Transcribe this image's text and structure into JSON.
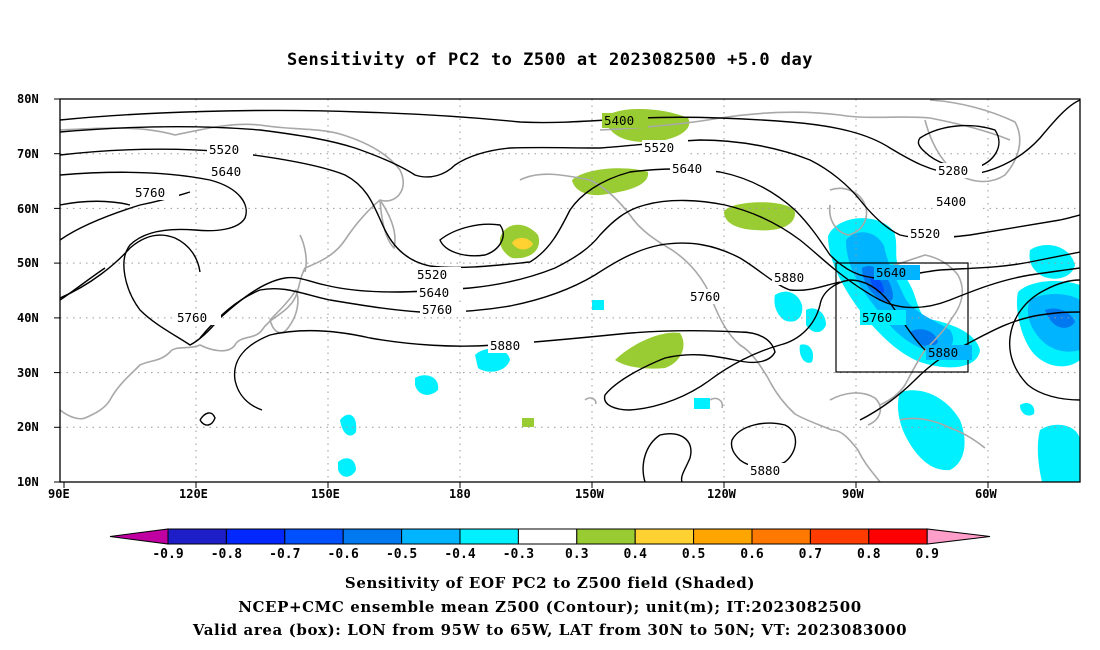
{
  "title": "Sensitivity of PC2 to Z500 at 2023082500 +5.0 day",
  "map": {
    "lon_ticks": [
      "90E",
      "120E",
      "150E",
      "180",
      "150W",
      "120W",
      "90W",
      "60W"
    ],
    "lat_ticks": [
      "80N",
      "70N",
      "60N",
      "50N",
      "40N",
      "30N",
      "20N",
      "10N"
    ],
    "lon_range": [
      90,
      315
    ],
    "lat_range": [
      10,
      80
    ],
    "valid_box": {
      "lon": [
        265,
        295
      ],
      "lat": [
        30,
        50
      ]
    },
    "contour_labels": [
      "5400",
      "5520",
      "5640",
      "5760",
      "5880",
      "5280"
    ],
    "colors": {
      "contour": "#000000",
      "coastline": "#a8a8a8",
      "grid": "#9a9a9a"
    }
  },
  "colorbar": {
    "labels": [
      "-0.9",
      "-0.8",
      "-0.7",
      "-0.6",
      "-0.5",
      "-0.4",
      "-0.3",
      "0.3",
      "0.4",
      "0.5",
      "0.6",
      "0.7",
      "0.8",
      "0.9"
    ],
    "colors": [
      "#c000a0",
      "#1e1ec8",
      "#0028ff",
      "#0050ff",
      "#0078f0",
      "#00b4ff",
      "#00f0ff",
      "#ffffff",
      "#99cc33",
      "#ffd232",
      "#ffa500",
      "#ff7800",
      "#ff3c00",
      "#ff0000",
      "#ff9ec8"
    ]
  },
  "captions": {
    "line1": "Sensitivity of EOF PC2 to Z500 field (Shaded)",
    "line2": "NCEP+CMC ensemble mean Z500 (Contour); unit(m); IT:2023082500",
    "line3": "Valid area (box): LON from 95W to 65W, LAT from 30N to 50N; VT: 2023083000"
  }
}
